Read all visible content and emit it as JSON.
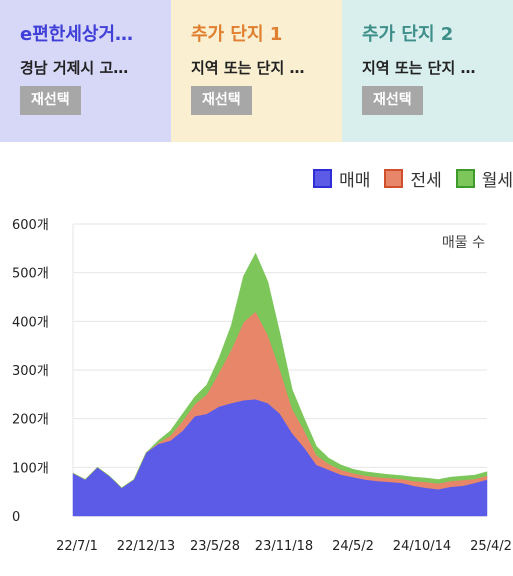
{
  "cards": [
    {
      "title": "e편한세상거…",
      "subtitle": "경남 거제시 고…",
      "button": "재선택",
      "bg": "#d7d7f8",
      "title_color": "#4040d8"
    },
    {
      "title": "추가 단지 1",
      "subtitle": "지역 또는 단지 …",
      "button": "재선택",
      "bg": "#faefd0",
      "title_color": "#e07f2f"
    },
    {
      "title": "추가 단지 2",
      "subtitle": "지역 또는 단지 …",
      "button": "재선택",
      "bg": "#d9efee",
      "title_color": "#3e8f8a"
    }
  ],
  "chart_data": {
    "type": "area",
    "stacked": true,
    "annotation": "매물 수",
    "ylim": [
      0,
      600
    ],
    "yticks": [
      "0",
      "100개",
      "200개",
      "300개",
      "400개",
      "500개",
      "600개"
    ],
    "xticks": [
      "22/7/1",
      "22/12/13",
      "23/5/28",
      "23/11/18",
      "24/5/2",
      "24/10/14",
      "25/4/2"
    ],
    "grid": true,
    "x": [
      "22/7/1",
      "22/8/15",
      "22/10/1",
      "22/11/15",
      "22/12/13",
      "23/1/15",
      "23/3/1",
      "23/4/15",
      "23/5/28",
      "23/6/20",
      "23/7/15",
      "23/8/15",
      "23/9/15",
      "23/10/10",
      "23/10/30",
      "23/11/18",
      "23/12/10",
      "24/1/1",
      "24/1/25",
      "24/2/20",
      "24/3/15",
      "24/4/10",
      "24/5/2",
      "24/6/1",
      "24/7/1",
      "24/8/1",
      "24/9/1",
      "24/10/14",
      "24/11/15",
      "24/12/15",
      "25/1/15",
      "25/2/15",
      "25/4/2",
      "25/5/1",
      "25/6/1"
    ],
    "series": [
      {
        "name": "매매",
        "color": "#5b5be8",
        "border": "#2e2ed4",
        "values": [
          88,
          75,
          100,
          82,
          58,
          75,
          130,
          148,
          155,
          175,
          205,
          210,
          225,
          232,
          238,
          240,
          232,
          210,
          170,
          140,
          105,
          95,
          85,
          80,
          75,
          72,
          70,
          68,
          62,
          58,
          55,
          60,
          62,
          68,
          75
        ]
      },
      {
        "name": "전세",
        "color": "#e8866a",
        "border": "#d0502e",
        "values": [
          0,
          0,
          0,
          0,
          0,
          0,
          0,
          2,
          10,
          20,
          25,
          40,
          70,
          110,
          160,
          180,
          140,
          90,
          50,
          35,
          20,
          12,
          10,
          8,
          8,
          8,
          8,
          8,
          10,
          12,
          12,
          12,
          12,
          8,
          8
        ]
      },
      {
        "name": "월세",
        "color": "#7cc65a",
        "border": "#3e9a2a",
        "values": [
          0,
          0,
          0,
          0,
          0,
          0,
          0,
          5,
          10,
          15,
          15,
          20,
          30,
          50,
          95,
          120,
          110,
          75,
          40,
          25,
          18,
          12,
          10,
          8,
          8,
          8,
          7,
          7,
          8,
          8,
          8,
          8,
          8,
          8,
          8
        ]
      }
    ]
  }
}
